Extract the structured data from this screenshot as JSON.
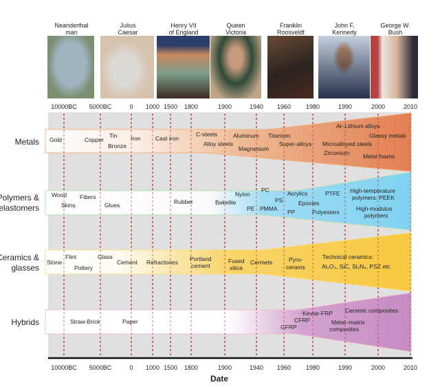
{
  "people": [
    {
      "name": "Neanderthal man",
      "l1": "Neanderthal",
      "l2": "man"
    },
    {
      "name": "Julius Caesar",
      "l1": "Julius",
      "l2": "Caesar"
    },
    {
      "name": "Henry VII of England",
      "l1": "Henry VII",
      "l2": "of England"
    },
    {
      "name": "Queen Victoria",
      "l1": "Queen",
      "l2": "Victoria"
    },
    {
      "name": "Franklin Roosveldt",
      "l1": "Franklin",
      "l2": "Roosveldt"
    },
    {
      "name": "John F. Kennedy",
      "l1": "John F.",
      "l2": "Kennedy"
    },
    {
      "name": "George W. Bush",
      "l1": "George W.",
      "l2": "Bush"
    }
  ],
  "ticks": [
    "10000BC",
    "5000BC",
    "0",
    "1000",
    "1500",
    "1800",
    "1900",
    "1940",
    "1960",
    "1980",
    "1990",
    "2000",
    "2010"
  ],
  "xlabel": "Date",
  "categories": [
    {
      "name": "Metals",
      "color": "#e2875a"
    },
    {
      "name": "Polymers & elastomers",
      "l1": "Polymers &",
      "l2": "elastomers",
      "color": "#7fd2f2"
    },
    {
      "name": "Ceramics & glasses",
      "l1": "Ceramics &",
      "l2": "glasses",
      "color": "#f6c93f"
    },
    {
      "name": "Hybrids",
      "color": "#c58cc2"
    }
  ],
  "metals": [
    "Gold",
    "Copper",
    "Tin",
    "Bronze",
    "Iron",
    "Cast iron",
    "C-steels",
    "Alloy steels",
    "Aluminum",
    "Magnesium",
    "Titanium",
    "Super-alloys",
    "Al–Lithium alloys",
    "Glassy metals",
    "Microalloyed steels",
    "Zirconium",
    "Metal foams"
  ],
  "polymers": [
    "Wood",
    "Fibers",
    "Skins",
    "Glues",
    "Rubber",
    "Bakelite",
    "Nylon",
    "PC",
    "PS",
    "PE",
    "PMMA",
    "Acrylics",
    "Epoxies",
    "PP",
    "PTFE",
    "Polyesters",
    "High-temperature",
    "polymers: PEEK",
    "High-modulus",
    "polymers"
  ],
  "ceramics": [
    "Stone",
    "Flint",
    "Pottery",
    "Glass",
    "Cement",
    "Refractories",
    "Portland",
    "cement",
    "Fused",
    "silica",
    "Cermets",
    "Pyro-",
    "cerams",
    "Technical ceramics:",
    "Al₂O₃, SiC,  Si₃N₄, PSZ etc"
  ],
  "hybrids": [
    "Straw-Brick",
    "Paper",
    "Kevlar-FRP",
    "CFRP",
    "GFRP",
    "Ceramic composites",
    "Metal–matrix",
    "composites"
  ]
}
